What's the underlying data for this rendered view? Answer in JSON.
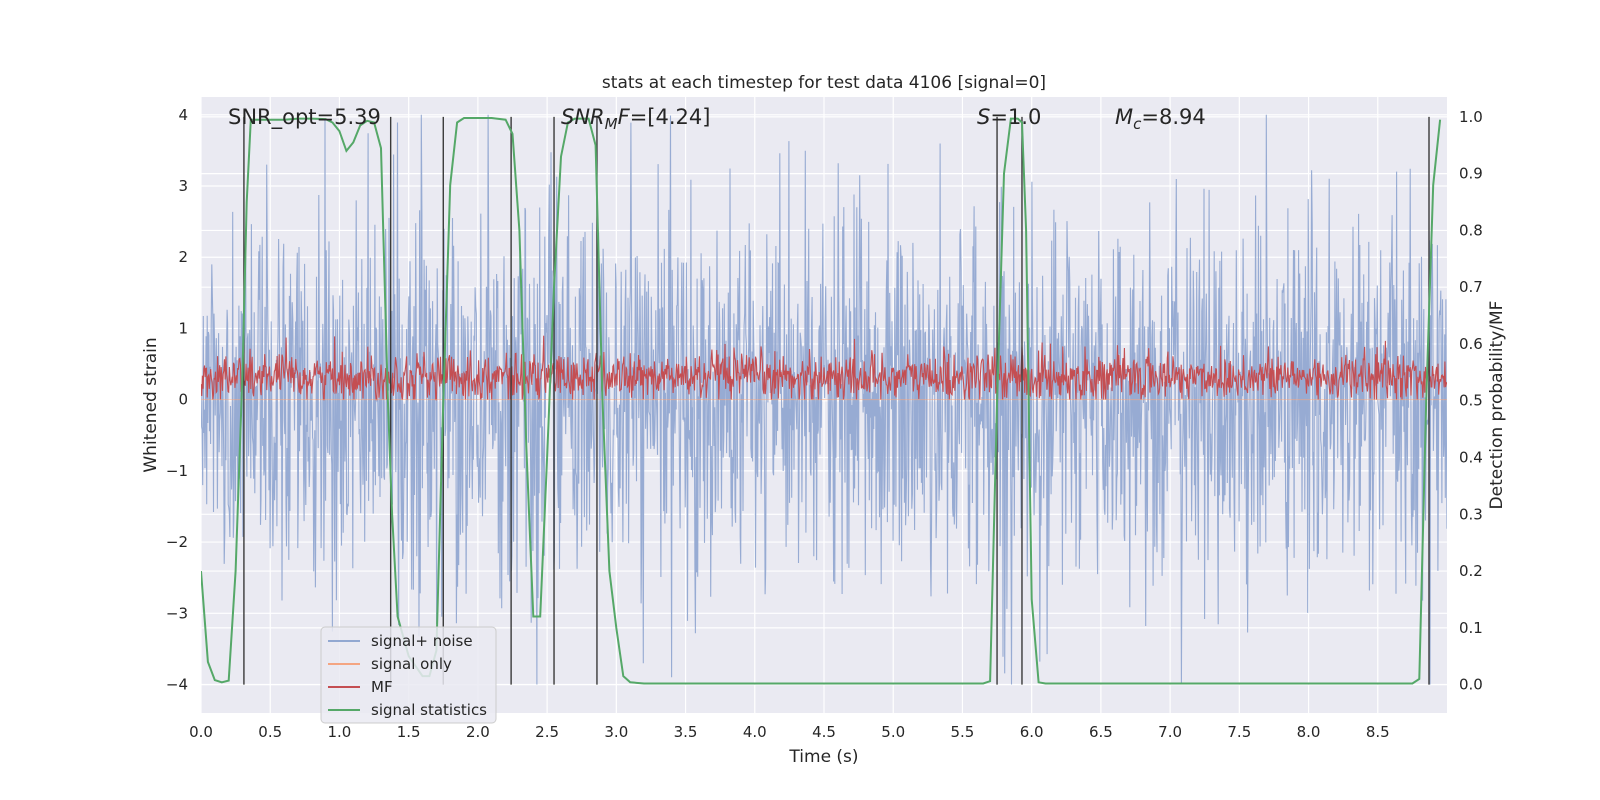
{
  "chart_data": {
    "type": "line",
    "title": "stats at each timestep for test data 4106 [signal=0]",
    "xlabel": "Time (s)",
    "ylabel_left": "Whitened strain",
    "ylabel_right": "Detection probability/MF",
    "xlim": [
      0.0,
      9.0
    ],
    "ylim_left": [
      -4.4,
      4.25
    ],
    "ylim_right": [
      -0.05,
      1.035
    ],
    "x_ticks": [
      "0.0",
      "0.5",
      "1.0",
      "1.5",
      "2.0",
      "2.5",
      "3.0",
      "3.5",
      "4.0",
      "4.5",
      "5.0",
      "5.5",
      "6.0",
      "6.5",
      "7.0",
      "7.5",
      "8.0",
      "8.5"
    ],
    "y_ticks_left": [
      "4",
      "3",
      "2",
      "1",
      "0",
      "−1",
      "−2",
      "−3",
      "−4"
    ],
    "y_ticks_right": [
      "1.0",
      "0.9",
      "0.8",
      "0.7",
      "0.6",
      "0.5",
      "0.4",
      "0.3",
      "0.2",
      "0.1",
      "0.0"
    ],
    "grid": true,
    "legend_position": "lower-left",
    "annotations": [
      {
        "label": "SNR_opt",
        "value": "=5.39"
      },
      {
        "label": "SNR",
        "sub": "M",
        "tail": "F",
        "value": "=[4.24]"
      },
      {
        "label": "S",
        "value": "=1.0"
      },
      {
        "label": "M",
        "sub": "c",
        "value": "=8.94"
      }
    ],
    "series": [
      {
        "name": "signal+ noise",
        "color": "#92a8d1",
        "kind": "noise",
        "y_range": [
          -4.0,
          4.0
        ]
      },
      {
        "name": "signal only",
        "color": "#f4a582",
        "kind": "flat",
        "value": 0.0
      },
      {
        "name": "MF",
        "color": "#c44e52",
        "kind": "mf",
        "y_range": [
          0.0,
          1.0
        ]
      },
      {
        "name": "signal statistics",
        "color": "#55a868",
        "axis": "right",
        "x": [
          0.0,
          0.05,
          0.1,
          0.15,
          0.2,
          0.25,
          0.3,
          0.33,
          0.36,
          0.4,
          0.5,
          0.6,
          0.7,
          0.8,
          0.9,
          0.95,
          1.0,
          1.05,
          1.1,
          1.15,
          1.2,
          1.25,
          1.3,
          1.35,
          1.38,
          1.42,
          1.5,
          1.6,
          1.65,
          1.7,
          1.75,
          1.8,
          1.85,
          1.9,
          2.0,
          2.1,
          2.2,
          2.25,
          2.3,
          2.35,
          2.4,
          2.45,
          2.5,
          2.55,
          2.6,
          2.65,
          2.7,
          2.8,
          2.85,
          2.9,
          2.95,
          3.0,
          3.05,
          3.1,
          3.2,
          5.5,
          5.6,
          5.65,
          5.7,
          5.75,
          5.8,
          5.85,
          5.9,
          5.93,
          5.96,
          6.0,
          6.05,
          6.1,
          6.2,
          8.5,
          8.75,
          8.8,
          8.85,
          8.9,
          8.95
        ],
        "y": [
          0.2,
          0.04,
          0.008,
          0.004,
          0.007,
          0.2,
          0.55,
          0.85,
          0.995,
          0.995,
          0.995,
          0.995,
          0.997,
          0.997,
          0.996,
          0.99,
          0.975,
          0.94,
          0.955,
          0.985,
          0.993,
          0.99,
          0.945,
          0.5,
          0.3,
          0.12,
          0.05,
          0.015,
          0.015,
          0.06,
          0.5,
          0.88,
          0.99,
          0.998,
          0.998,
          0.998,
          0.995,
          0.97,
          0.8,
          0.42,
          0.12,
          0.12,
          0.4,
          0.7,
          0.93,
          0.99,
          0.997,
          0.997,
          0.95,
          0.5,
          0.2,
          0.1,
          0.015,
          0.004,
          0.002,
          0.002,
          0.002,
          0.002,
          0.006,
          0.5,
          0.9,
          0.997,
          0.997,
          0.99,
          0.8,
          0.15,
          0.004,
          0.002,
          0.002,
          0.002,
          0.002,
          0.01,
          0.5,
          0.88,
          0.995
        ]
      }
    ],
    "vertical_markers_x": [
      0.31,
      1.37,
      1.75,
      2.24,
      2.55,
      2.86,
      5.75,
      5.93,
      8.87
    ]
  }
}
